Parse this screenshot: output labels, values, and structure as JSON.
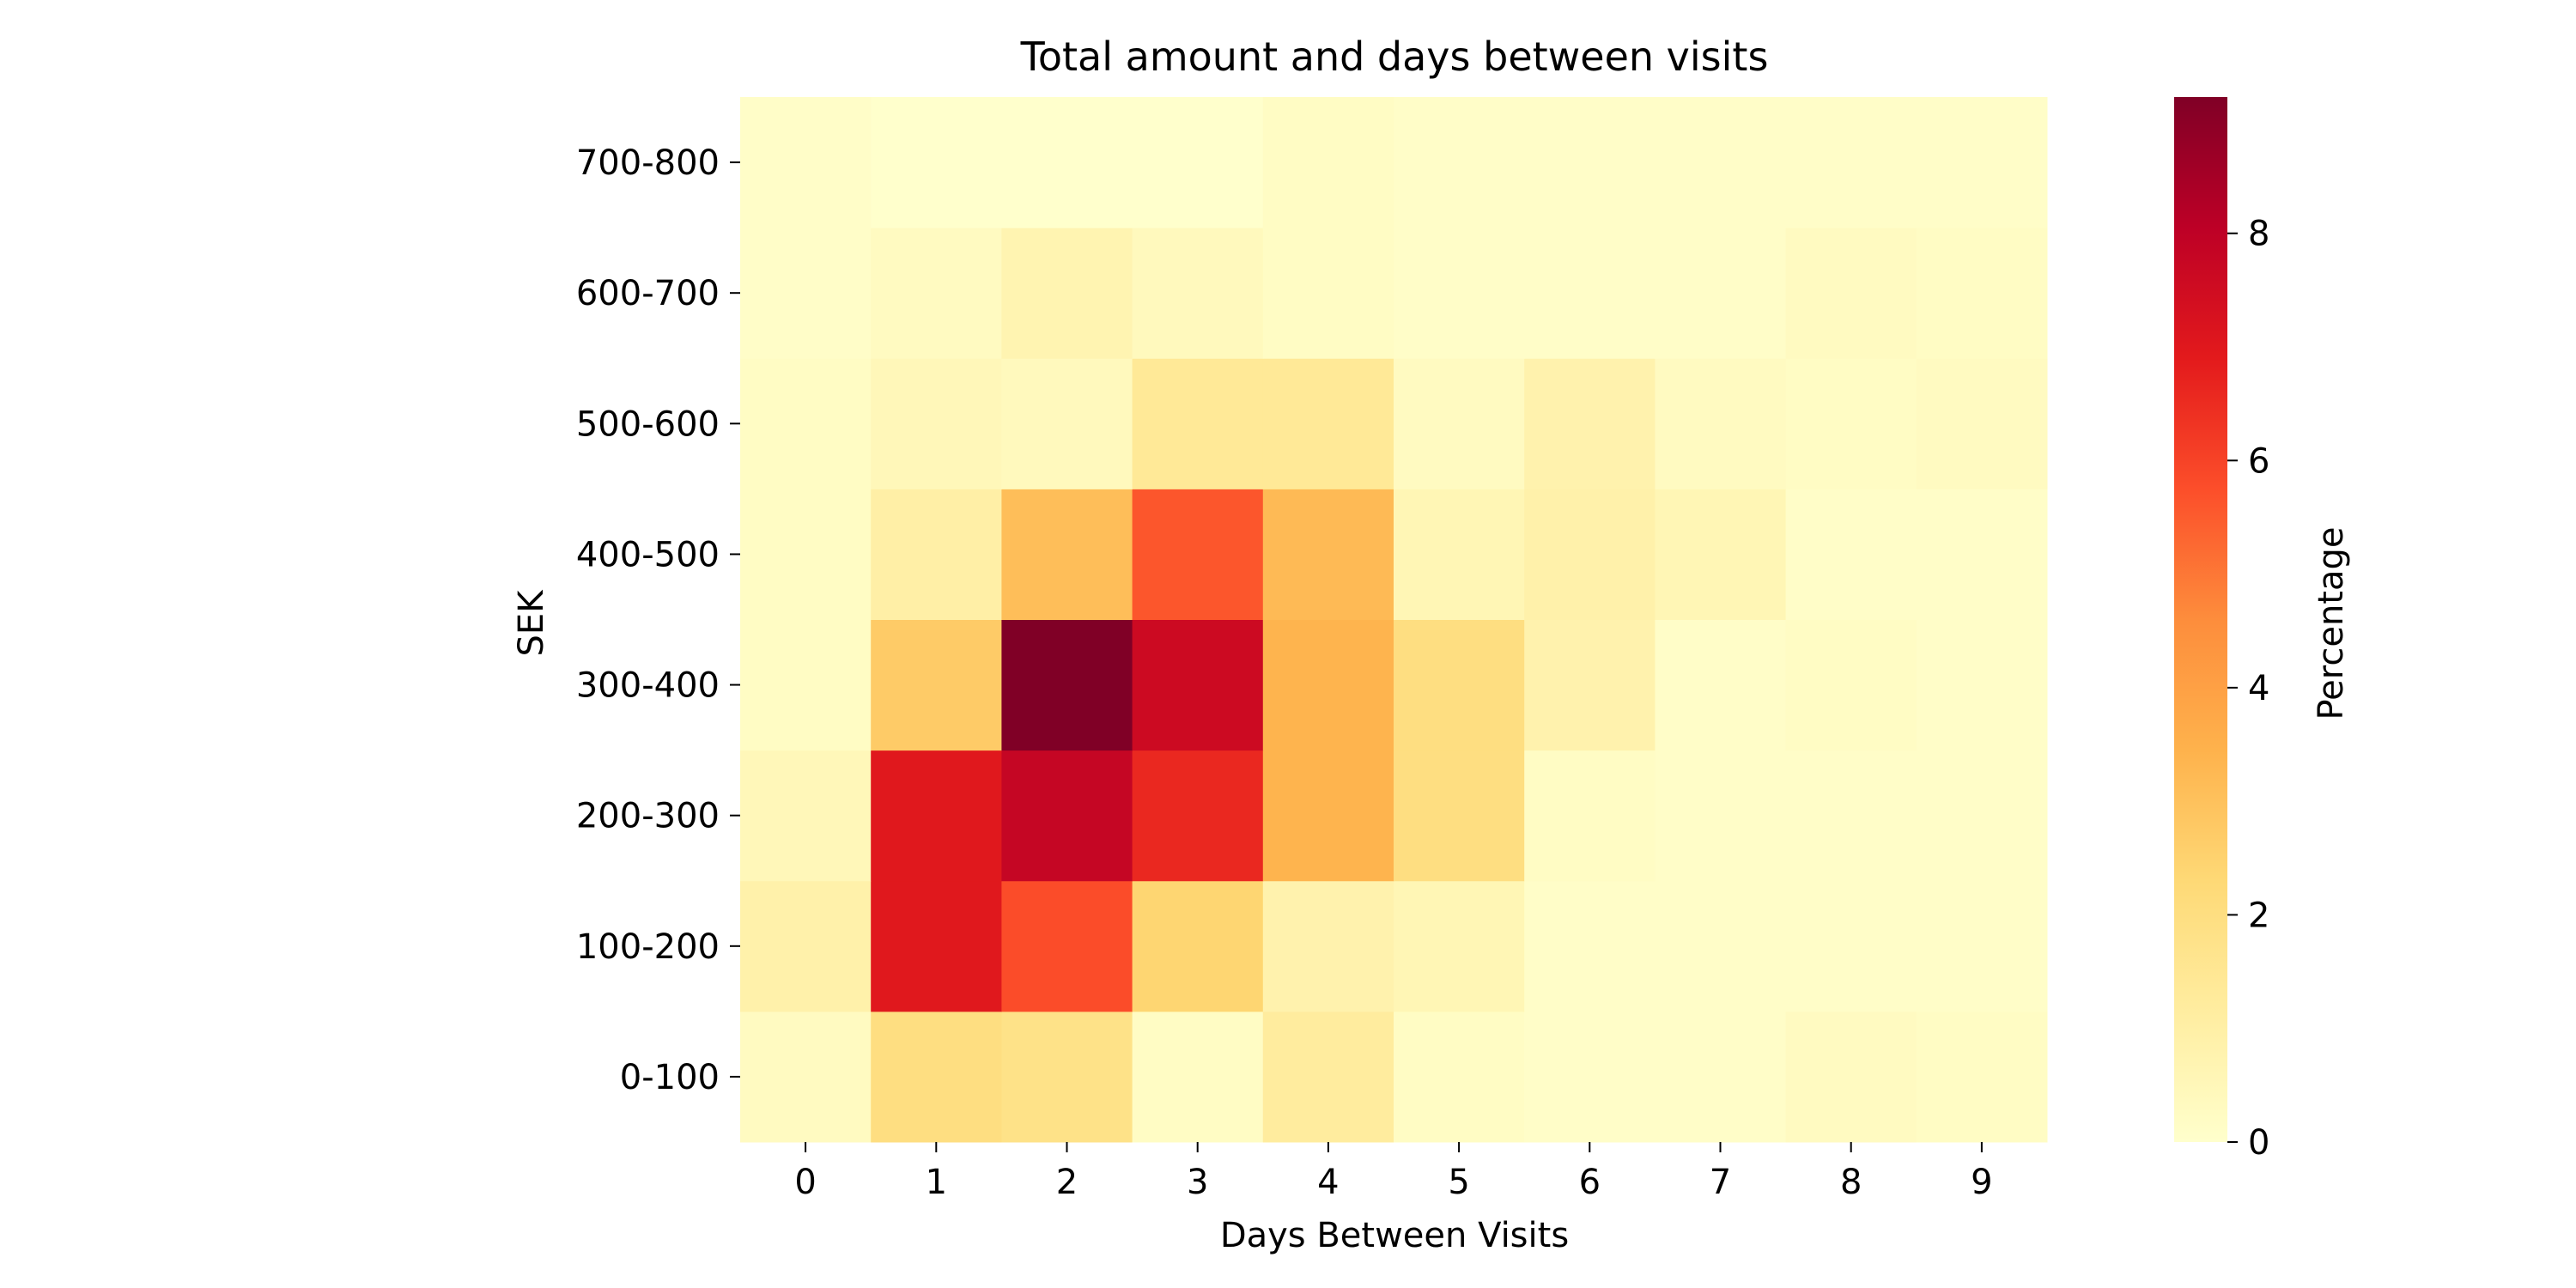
{
  "chart_data": {
    "type": "heatmap",
    "title": "Total amount and days between visits",
    "xlabel": "Days Between Visits",
    "ylabel": "SEK",
    "x_categories": [
      "0",
      "1",
      "2",
      "3",
      "4",
      "5",
      "6",
      "7",
      "8",
      "9"
    ],
    "y_categories_bottom_to_top": [
      "0-100",
      "100-200",
      "200-300",
      "300-400",
      "400-500",
      "500-600",
      "600-700",
      "700-800"
    ],
    "values_rows_bottom_to_top": [
      [
        0.3,
        2.0,
        1.8,
        0.2,
        1.2,
        0.2,
        0.1,
        0.1,
        0.3,
        0.2
      ],
      [
        0.9,
        7.0,
        5.8,
        2.4,
        0.8,
        0.6,
        0.1,
        0.1,
        0.1,
        0.1
      ],
      [
        0.5,
        7.0,
        7.8,
        6.6,
        3.4,
        2.0,
        0.2,
        0.1,
        0.1,
        0.1
      ],
      [
        0.2,
        2.7,
        9.2,
        7.6,
        3.4,
        2.0,
        0.8,
        0.1,
        0.2,
        0.1
      ],
      [
        0.2,
        1.0,
        3.1,
        5.6,
        3.2,
        0.6,
        0.9,
        0.6,
        0.1,
        0.1
      ],
      [
        0.2,
        0.5,
        0.4,
        1.4,
        1.4,
        0.3,
        0.8,
        0.3,
        0.2,
        0.3
      ],
      [
        0.1,
        0.3,
        0.7,
        0.4,
        0.2,
        0.1,
        0.1,
        0.1,
        0.3,
        0.2
      ],
      [
        0.1,
        0.0,
        0.0,
        0.0,
        0.2,
        0.1,
        0.1,
        0.1,
        0.1,
        0.1
      ]
    ],
    "colorbar": {
      "label": "Percentage",
      "ticks": [
        0,
        2,
        4,
        6,
        8
      ],
      "min": 0,
      "max": 9.2,
      "colormap": "YlOrRd",
      "colors": [
        "#ffffcc",
        "#ffeda0",
        "#fed976",
        "#feb24c",
        "#fd8d3c",
        "#fc4e2a",
        "#e31a1c",
        "#bd0026",
        "#800026"
      ]
    }
  }
}
